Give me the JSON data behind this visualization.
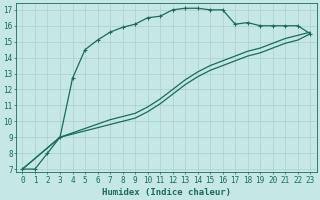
{
  "bg_color": "#c5e8e5",
  "grid_color": "#aad0cc",
  "line_color": "#1a6b5a",
  "line_width": 0.9,
  "marker": "+",
  "marker_size": 3.5,
  "marker_ew": 0.8,
  "xlabel": "Humidex (Indice chaleur)",
  "xlabel_fontsize": 6.5,
  "tick_fontsize": 5.5,
  "xlim_min": -0.5,
  "xlim_max": 23.5,
  "ylim_min": 6.8,
  "ylim_max": 17.4,
  "xticks": [
    0,
    1,
    2,
    3,
    4,
    5,
    6,
    7,
    8,
    9,
    10,
    11,
    12,
    13,
    14,
    15,
    16,
    17,
    18,
    19,
    20,
    21,
    22,
    23
  ],
  "yticks": [
    7,
    8,
    9,
    10,
    11,
    12,
    13,
    14,
    15,
    16,
    17
  ],
  "line1_x": [
    0,
    1,
    2,
    3,
    4,
    5,
    6,
    7,
    8,
    9,
    10,
    11,
    12,
    13,
    14,
    15,
    16,
    17,
    18,
    19,
    20,
    21,
    22,
    23
  ],
  "line1_y": [
    7,
    7,
    8,
    9,
    12.7,
    14.5,
    15.1,
    15.6,
    15.9,
    16.1,
    16.5,
    16.6,
    17.0,
    17.1,
    17.1,
    17.0,
    17.0,
    16.1,
    16.2,
    16.0,
    16.0,
    16.0,
    16.0,
    15.5
  ],
  "line2_x": [
    0,
    3,
    7,
    9,
    10,
    11,
    12,
    13,
    14,
    15,
    16,
    17,
    18,
    19,
    20,
    21,
    22,
    23
  ],
  "line2_y": [
    7,
    9.0,
    10.1,
    10.5,
    10.9,
    11.4,
    12.0,
    12.6,
    13.1,
    13.5,
    13.8,
    14.1,
    14.4,
    14.6,
    14.9,
    15.2,
    15.4,
    15.6
  ],
  "line3_x": [
    0,
    3,
    7,
    9,
    10,
    11,
    12,
    13,
    14,
    15,
    16,
    17,
    18,
    19,
    20,
    21,
    22,
    23
  ],
  "line3_y": [
    7,
    9.0,
    9.8,
    10.2,
    10.6,
    11.1,
    11.7,
    12.3,
    12.8,
    13.2,
    13.5,
    13.8,
    14.1,
    14.3,
    14.6,
    14.9,
    15.1,
    15.5
  ]
}
